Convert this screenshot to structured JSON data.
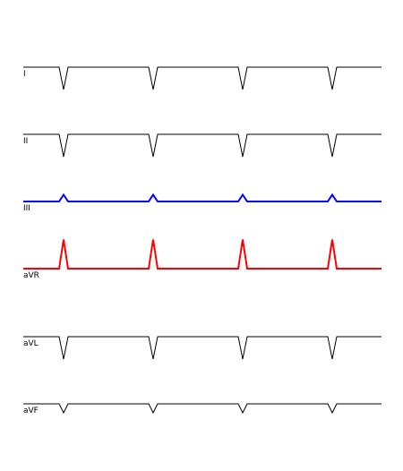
{
  "chart_data": {
    "type": "line",
    "xlim": [
      0,
      4
    ],
    "grid": false,
    "beats": [
      0.45,
      1.45,
      2.45,
      3.45
    ],
    "series": [
      {
        "name": "I",
        "color": "#000000",
        "width": 1,
        "amplitude": -1.0
      },
      {
        "name": "II",
        "color": "#000000",
        "width": 1,
        "amplitude": -1.0
      },
      {
        "name": "III",
        "color": "#0000ff",
        "width": 2,
        "amplitude": 0.3
      },
      {
        "name": "aVR",
        "color": "#ff0000",
        "width": 2,
        "amplitude": 1.3
      },
      {
        "name": "aVL",
        "color": "#000000",
        "width": 1,
        "amplitude": -1.0
      },
      {
        "name": "aVF",
        "color": "#000000",
        "width": 1,
        "amplitude": -0.4
      }
    ]
  }
}
